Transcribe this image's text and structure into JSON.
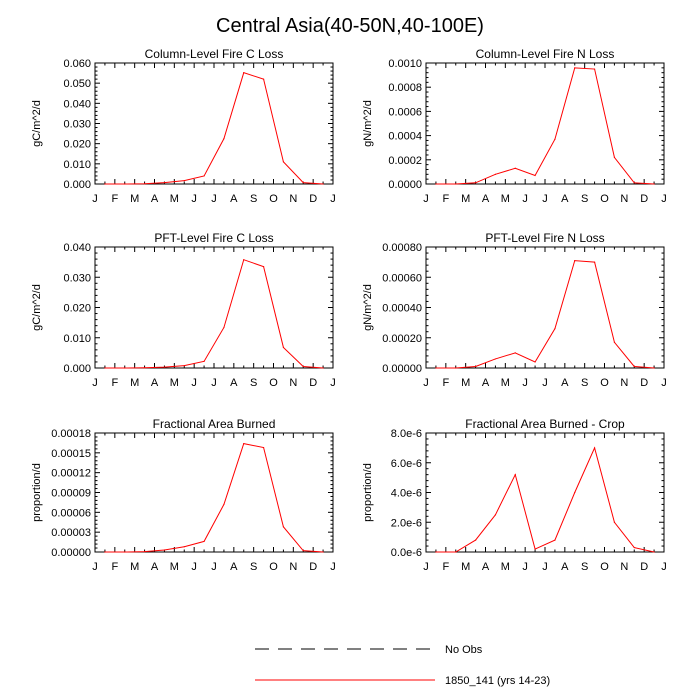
{
  "title": "Central Asia(40-50N,40-100E)",
  "month_labels": [
    "J",
    "F",
    "M",
    "A",
    "M",
    "J",
    "J",
    "A",
    "S",
    "O",
    "N",
    "D",
    "J"
  ],
  "legend": [
    {
      "label": "No Obs",
      "style": "dashed",
      "color": "#000000"
    },
    {
      "label": "1850_141 (yrs 14-23)",
      "style": "solid",
      "color": "#ff0000"
    }
  ],
  "chart_data": [
    {
      "type": "line",
      "title": "Column-Level Fire C Loss",
      "ylabel": "gC/m^2/d",
      "x": [
        1,
        2,
        3,
        4,
        5,
        6,
        7,
        8,
        9,
        10,
        11,
        12
      ],
      "ylim": [
        0,
        0.06
      ],
      "yticks": [
        "0.000",
        "0.010",
        "0.020",
        "0.030",
        "0.040",
        "0.050",
        "0.060"
      ],
      "series": [
        {
          "name": "1850_141 (yrs 14-23)",
          "values": [
            0.0,
            0.0,
            0.0001,
            0.0007,
            0.0017,
            0.004,
            0.0225,
            0.0552,
            0.052,
            0.011,
            0.0007,
            0.0
          ]
        }
      ]
    },
    {
      "type": "line",
      "title": "Column-Level Fire N Loss",
      "ylabel": "gN/m^2/d",
      "x": [
        1,
        2,
        3,
        4,
        5,
        6,
        7,
        8,
        9,
        10,
        11,
        12
      ],
      "ylim": [
        0,
        0.001
      ],
      "yticks": [
        "0.0000",
        "0.0002",
        "0.0004",
        "0.0006",
        "0.0008",
        "0.0010"
      ],
      "series": [
        {
          "name": "1850_141 (yrs 14-23)",
          "values": [
            0.0,
            0.0,
            1e-05,
            8e-05,
            0.00013,
            7e-05,
            0.00037,
            0.00096,
            0.00095,
            0.00022,
            1e-05,
            0.0
          ]
        }
      ]
    },
    {
      "type": "line",
      "title": "PFT-Level Fire C Loss",
      "ylabel": "gC/m^2/d",
      "x": [
        1,
        2,
        3,
        4,
        5,
        6,
        7,
        8,
        9,
        10,
        11,
        12
      ],
      "ylim": [
        0,
        0.04
      ],
      "yticks": [
        "0.000",
        "0.010",
        "0.020",
        "0.030",
        "0.040"
      ],
      "series": [
        {
          "name": "1850_141 (yrs 14-23)",
          "values": [
            0.0,
            0.0,
            0.0001,
            0.0003,
            0.0008,
            0.0022,
            0.0134,
            0.0358,
            0.0335,
            0.0068,
            0.0005,
            0.0
          ]
        }
      ]
    },
    {
      "type": "line",
      "title": "PFT-Level Fire N Loss",
      "ylabel": "gN/m^2/d",
      "x": [
        1,
        2,
        3,
        4,
        5,
        6,
        7,
        8,
        9,
        10,
        11,
        12
      ],
      "ylim": [
        0,
        0.0008
      ],
      "yticks": [
        "0.00000",
        "0.00020",
        "0.00040",
        "0.00060",
        "0.00080"
      ],
      "series": [
        {
          "name": "1850_141 (yrs 14-23)",
          "values": [
            0.0,
            0.0,
            1e-05,
            6e-05,
            0.0001,
            4e-05,
            0.00026,
            0.00071,
            0.0007,
            0.00017,
            1e-05,
            0.0
          ]
        }
      ]
    },
    {
      "type": "line",
      "title": "Fractional Area Burned",
      "ylabel": "proportion/d",
      "x": [
        1,
        2,
        3,
        4,
        5,
        6,
        7,
        8,
        9,
        10,
        11,
        12
      ],
      "ylim": [
        0,
        0.00018
      ],
      "yticks": [
        "0.00000",
        "0.00003",
        "0.00006",
        "0.00009",
        "0.00012",
        "0.00015",
        "0.00018"
      ],
      "series": [
        {
          "name": "1850_141 (yrs 14-23)",
          "values": [
            0.0,
            0.0,
            5e-07,
            3e-06,
            8e-06,
            1.6e-05,
            7.2e-05,
            0.000164,
            0.000158,
            3.8e-05,
            2e-06,
            0.0
          ]
        }
      ]
    },
    {
      "type": "line",
      "title": "Fractional Area Burned - Crop",
      "ylabel": "proportion/d",
      "x": [
        1,
        2,
        3,
        4,
        5,
        6,
        7,
        8,
        9,
        10,
        11,
        12
      ],
      "ylim": [
        0,
        8e-06
      ],
      "yticks": [
        "0.0e-6",
        "2.0e-6",
        "4.0e-6",
        "6.0e-6",
        "8.0e-6"
      ],
      "series": [
        {
          "name": "1850_141 (yrs 14-23)",
          "values": [
            0.0,
            0.0,
            8e-07,
            2.5e-06,
            5.2e-06,
            2e-07,
            8e-07,
            4e-06,
            7e-06,
            2e-06,
            3e-07,
            0.0
          ]
        }
      ]
    }
  ]
}
